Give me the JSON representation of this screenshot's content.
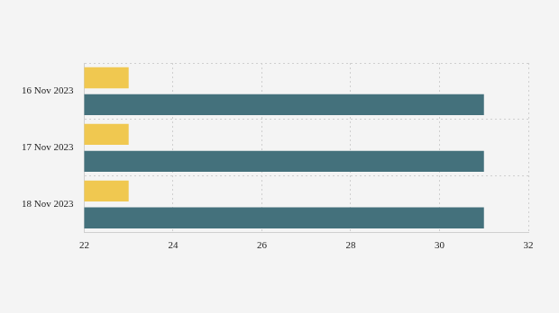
{
  "chart_data": {
    "type": "bar",
    "orientation": "horizontal",
    "categories": [
      "16 Nov 2023",
      "17 Nov 2023",
      "18 Nov 2023"
    ],
    "series": [
      {
        "color": "#f0c850",
        "values": [
          23,
          23,
          23
        ]
      },
      {
        "color": "#44717c",
        "values": [
          31,
          31,
          31
        ]
      }
    ],
    "xlim": [
      22,
      32
    ],
    "xticks": [
      22,
      24,
      26,
      28,
      30,
      32
    ],
    "grid": true
  }
}
